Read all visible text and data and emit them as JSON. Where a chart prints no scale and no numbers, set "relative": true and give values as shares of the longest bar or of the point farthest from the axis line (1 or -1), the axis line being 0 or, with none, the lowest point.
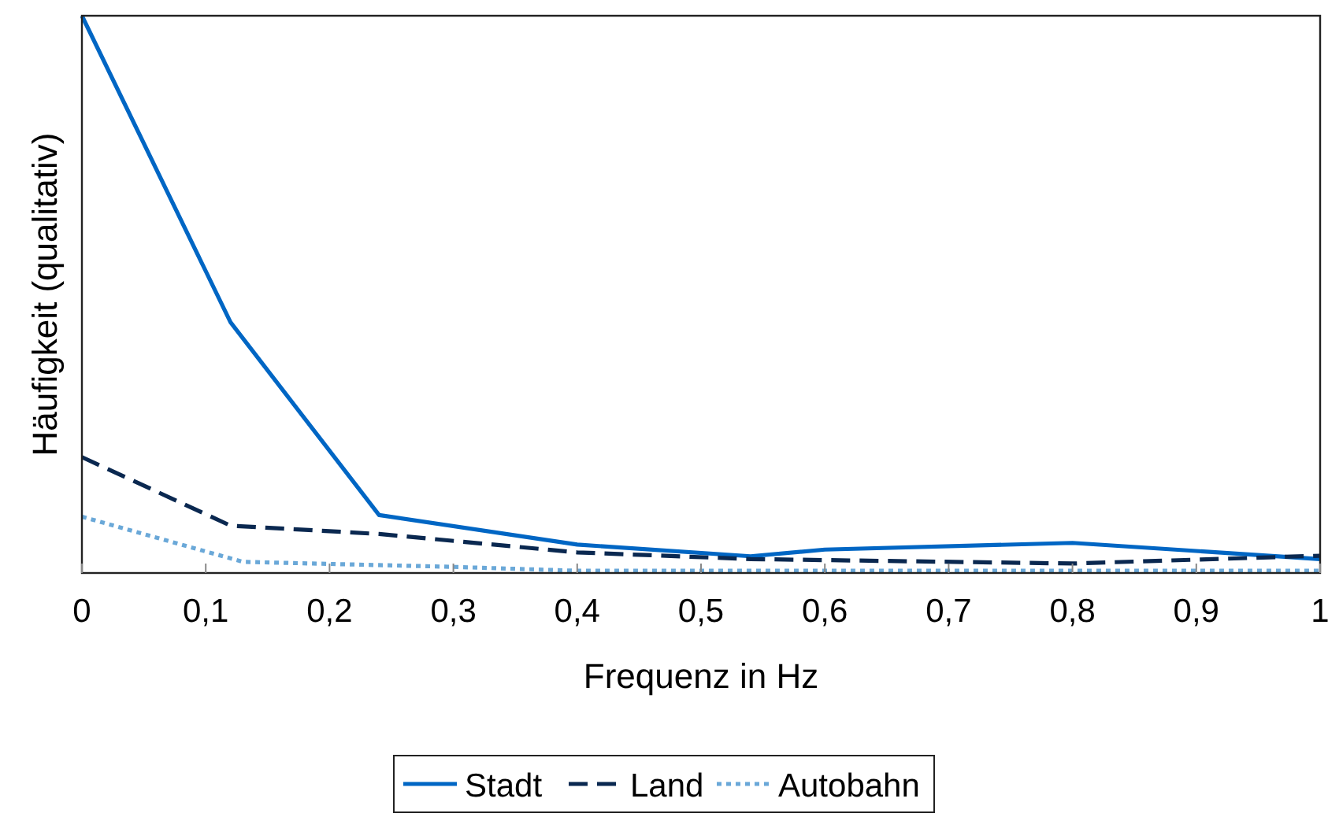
{
  "chart_data": {
    "type": "line",
    "relative": true,
    "xlabel": "Frequenz in Hz",
    "ylabel": "Häufigkeit (qualitativ)",
    "xlim": [
      0,
      1
    ],
    "xticks": [
      {
        "value": 0,
        "label": "0"
      },
      {
        "value": 0.1,
        "label": "0,1"
      },
      {
        "value": 0.2,
        "label": "0,2"
      },
      {
        "value": 0.3,
        "label": "0,3"
      },
      {
        "value": 0.4,
        "label": "0,4"
      },
      {
        "value": 0.5,
        "label": "0,5"
      },
      {
        "value": 0.6,
        "label": "0,6"
      },
      {
        "value": 0.7,
        "label": "0,7"
      },
      {
        "value": 0.8,
        "label": "0,8"
      },
      {
        "value": 0.9,
        "label": "0,9"
      },
      {
        "value": 1,
        "label": "1"
      }
    ],
    "legend": "bottom",
    "marker": "none",
    "grid": false,
    "series": [
      {
        "name": "Stadt",
        "color": "#0066c4",
        "line_style": "solid",
        "x": [
          0,
          0.12,
          0.24,
          0.4,
          0.54,
          0.6,
          0.8,
          1
        ],
        "values": [
          1,
          0.45,
          0.104,
          0.051,
          0.03,
          0.042,
          0.054,
          0.025
        ]
      },
      {
        "name": "Land",
        "color": "#0a2850",
        "line_style": "dashed",
        "x": [
          0,
          0.12,
          0.24,
          0.4,
          0.54,
          0.8,
          1
        ],
        "values": [
          0.208,
          0.085,
          0.07,
          0.037,
          0.025,
          0.017,
          0.031
        ]
      },
      {
        "name": "Autobahn",
        "color": "#6aa8d8",
        "line_style": "dotted",
        "x": [
          0,
          0.13,
          0.3,
          0.4,
          1
        ],
        "values": [
          0.101,
          0.02,
          0.011,
          0.004,
          0.004
        ]
      }
    ]
  }
}
